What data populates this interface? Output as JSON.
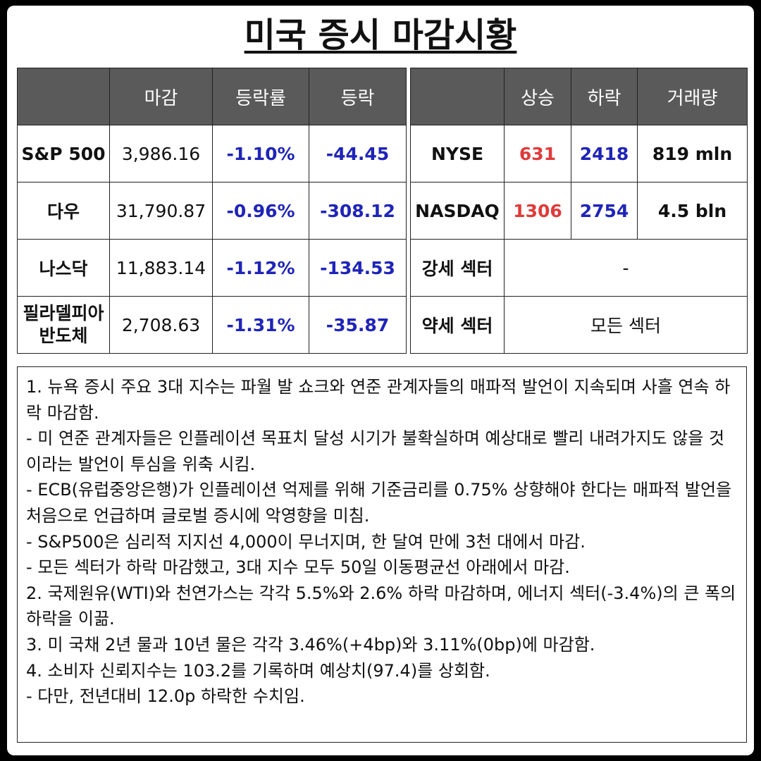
{
  "title": "미국 증시 마감시황",
  "index_table": {
    "headers": [
      "",
      "마감",
      "등락률",
      "등락"
    ],
    "rows": [
      {
        "name": "S&P 500",
        "close": "3,986.16",
        "pct": "-1.10%",
        "change": "-44.45"
      },
      {
        "name": "다우",
        "close": "31,790.87",
        "pct": "-0.96%",
        "change": "-308.12"
      },
      {
        "name": "나스닥",
        "close": "11,883.14",
        "pct": "-1.12%",
        "change": "-134.53"
      },
      {
        "name_line1": "필라델피아",
        "name_line2": "반도체",
        "close": "2,708.63",
        "pct": "-1.31%",
        "change": "-35.87"
      }
    ]
  },
  "market_table": {
    "headers": [
      "",
      "상승",
      "하락",
      "거래량"
    ],
    "rows": [
      {
        "name": "NYSE",
        "up": "631",
        "down": "2418",
        "volume": "819 mln"
      },
      {
        "name": "NASDAQ",
        "up": "1306",
        "down": "2754",
        "volume": "4.5 bln"
      }
    ],
    "strong_sector": {
      "label": "강세 섹터",
      "value": "-"
    },
    "weak_sector": {
      "label": "약세 섹터",
      "value": "모든 섹터"
    }
  },
  "notes": [
    "1. 뉴욕 증시 주요 3대 지수는 파월 발 쇼크와 연준 관계자들의 매파적 발언이 지속되며 사흘 연속 하락 마감함.",
    "- 미 연준 관계자들은 인플레이션 목표치 달성 시기가 불확실하며 예상대로 빨리 내려가지도 않을 것이라는 발언이 투심을 위축 시킴.",
    "- ECB(유럽중앙은행)가 인플레이션 억제를 위해 기준금리를 0.75% 상향해야 한다는 매파적 발언을 처음으로 언급하며 글로벌 증시에 악영향을 미침.",
    "- S&P500은 심리적 지지선 4,000이 무너지며, 한 달여 만에 3천 대에서 마감.",
    "- 모든 섹터가 하락 마감했고, 3대 지수 모두 50일 이동평균선 아래에서 마감.",
    "2. 국제원유(WTI)와 천연가스는 각각 5.5%와 2.6% 하락 마감하며, 에너지 섹터(-3.4%)의 큰 폭의 하락을 이끎.",
    "3. 미 국채 2년 물과 10년 물은 각각 3.46%(+4bp)와 3.11%(0bp)에 마감함.",
    "4. 소비자 신뢰지수는 103.2를 기록하며 예상치(97.4)를 상회함.",
    "- 다만, 전년대비 12.0p 하락한 수치임."
  ],
  "colors": {
    "header_bg": "#5a5a5a",
    "negative": "#1f24b8",
    "advancing": "#e03a3a"
  }
}
